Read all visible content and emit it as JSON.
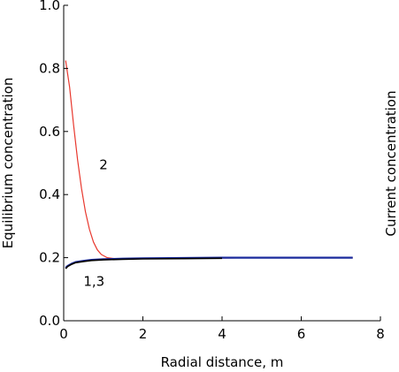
{
  "chart_data": {
    "type": "line",
    "title": "",
    "xlabel": "Radial distance, m",
    "ylabel": "Equilibrium concentration",
    "y2label": "Current concentration",
    "xlim": [
      0,
      8
    ],
    "ylim": [
      0,
      1.0
    ],
    "x_ticks": [
      0,
      2,
      4,
      6,
      8
    ],
    "y_ticks": [
      0.0,
      0.2,
      0.4,
      0.6,
      0.8,
      1.0
    ],
    "x_tick_labels": [
      "0",
      "2",
      "4",
      "6",
      "8"
    ],
    "y_tick_labels": [
      "0.0",
      "0.2",
      "0.4",
      "0.6",
      "0.8",
      "1.0"
    ],
    "grid": false,
    "series": [
      {
        "color": "#e8382e",
        "x": [
          0.05,
          0.15,
          0.25,
          0.35,
          0.45,
          0.55,
          0.65,
          0.75,
          0.85,
          0.95,
          1.1,
          1.3,
          1.6,
          2.0,
          3.0,
          4.0,
          5.0,
          6.0,
          7.3
        ],
        "y": [
          0.825,
          0.74,
          0.62,
          0.51,
          0.42,
          0.345,
          0.29,
          0.25,
          0.225,
          0.21,
          0.2,
          0.197,
          0.196,
          0.197,
          0.198,
          0.199,
          0.2,
          0.2,
          0.2
        ]
      },
      {
        "color": "#1a2a9c",
        "x": [
          0.05,
          0.1,
          0.2,
          0.3,
          0.5,
          0.7,
          1.0,
          1.5,
          2.0,
          3.0,
          4.0,
          5.0,
          6.0,
          7.3
        ],
        "y": [
          0.168,
          0.174,
          0.181,
          0.186,
          0.19,
          0.193,
          0.195,
          0.197,
          0.198,
          0.199,
          0.2,
          0.2,
          0.2,
          0.2
        ]
      },
      {
        "color": "#000000",
        "x": [
          0.05,
          0.1,
          0.2,
          0.3,
          0.5,
          0.7,
          1.0,
          1.5,
          2.0,
          3.0,
          4.0
        ],
        "y": [
          0.165,
          0.172,
          0.179,
          0.184,
          0.188,
          0.191,
          0.193,
          0.195,
          0.196,
          0.197,
          0.198
        ]
      }
    ],
    "annotations": [
      {
        "text": "2",
        "x": 0.9,
        "y": 0.48
      },
      {
        "text": "1,3",
        "x": 0.5,
        "y": 0.11
      }
    ]
  }
}
